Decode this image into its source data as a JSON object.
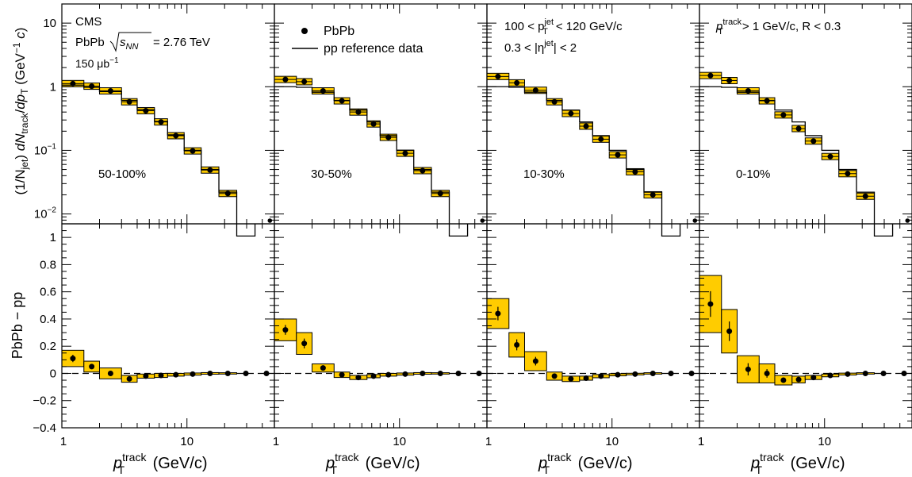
{
  "figure": {
    "experiment": "CMS",
    "system_prefix": "PbPb",
    "energy_sym": "s",
    "energy_sub": "NN",
    "energy_value": "= 2.76 TeV",
    "luminosity": "150 μb",
    "luminosity_exp": "−1",
    "legend_pbpb": "PbPb",
    "legend_pp": "pp reference data",
    "jet_cut_left": "100 < p",
    "jet_cut_sup": "jet",
    "jet_cut_sub": "T",
    "jet_cut_right": "< 120 GeV/c",
    "eta_left": "0.3 < |η",
    "eta_sup": "jet",
    "eta_right": "| < 2",
    "track_cut_p": "p",
    "track_cut_sup": "track",
    "track_cut_sub": "T",
    "track_cut_right": "> 1 GeV/c, R < 0.3",
    "top_ylabel": "(1/Njet) dNtrack/dpT (GeV/c)^-1",
    "bottom_ylabel": "PbPb − pp",
    "xlabel_p": "p",
    "xlabel_sup": "track",
    "xlabel_sub": "T",
    "xlabel_unit": "(GeV/c)"
  },
  "chart_data": {
    "type": "scatter",
    "x_scale": "log",
    "top_y_scale": "log",
    "xlim": [
      1,
      50
    ],
    "top_ylim": [
      0.007,
      20
    ],
    "bottom_ylim": [
      -0.4,
      1.1
    ],
    "x_tick_labels": [
      "1",
      "10"
    ],
    "top_y_tick_labels": [
      "10^-2",
      "10^-1",
      "1",
      "10"
    ],
    "bottom_y_tick_labels": [
      "−0.4",
      "−0.2",
      "0",
      "0.2",
      "0.4",
      "0.6",
      "0.8",
      "1"
    ],
    "bin_edges": [
      1,
      1.5,
      2,
      3,
      4,
      5.5,
      7,
      9.5,
      13,
      18,
      25,
      35,
      50
    ],
    "panels": [
      {
        "centrality": "50-100%",
        "pbpb": [
          1.12,
          1.02,
          0.86,
          0.58,
          0.42,
          0.28,
          0.17,
          0.098,
          0.049,
          0.021,
          0.004,
          0.0075
        ],
        "pp": [
          1.06,
          0.98,
          0.84,
          0.61,
          0.44,
          0.285,
          0.175,
          0.1,
          0.05,
          0.022,
          0.0045,
          0.0075
        ],
        "diff": [
          0.11,
          0.05,
          0.0,
          -0.04,
          -0.02,
          -0.015,
          -0.01,
          -0.005,
          0.0,
          0.0,
          0.0,
          0.0
        ],
        "diff_sys": [
          0.06,
          0.04,
          0.04,
          0.025,
          0.015,
          0.015,
          0.01,
          0.008,
          0.006,
          0.005,
          0.004,
          0.003
        ]
      },
      {
        "centrality": "30-50%",
        "pbpb": [
          1.3,
          1.2,
          0.86,
          0.6,
          0.4,
          0.26,
          0.16,
          0.09,
          0.048,
          0.021,
          0.004,
          0.0075
        ],
        "pp": [
          1.0,
          0.98,
          0.82,
          0.61,
          0.43,
          0.28,
          0.17,
          0.1,
          0.05,
          0.022,
          0.0045,
          0.0075
        ],
        "diff": [
          0.32,
          0.22,
          0.04,
          -0.01,
          -0.03,
          -0.02,
          -0.01,
          -0.005,
          0.0,
          0.0,
          0.0,
          0.0
        ],
        "diff_sys": [
          0.08,
          0.08,
          0.03,
          0.02,
          0.015,
          0.012,
          0.01,
          0.008,
          0.006,
          0.005,
          0.004,
          0.003
        ]
      },
      {
        "centrality": "10-30%",
        "pbpb": [
          1.45,
          1.15,
          0.88,
          0.58,
          0.38,
          0.24,
          0.15,
          0.085,
          0.046,
          0.02,
          0.004,
          0.0075
        ],
        "pp": [
          1.0,
          0.98,
          0.82,
          0.61,
          0.43,
          0.28,
          0.17,
          0.1,
          0.05,
          0.022,
          0.0045,
          0.0075
        ],
        "diff": [
          0.44,
          0.21,
          0.09,
          -0.02,
          -0.04,
          -0.035,
          -0.02,
          -0.01,
          -0.005,
          0.0,
          0.0,
          0.0
        ],
        "diff_sys": [
          0.11,
          0.09,
          0.07,
          0.03,
          0.02,
          0.015,
          0.012,
          0.008,
          0.006,
          0.005,
          0.004,
          0.003
        ]
      },
      {
        "centrality": "0-10%",
        "pbpb": [
          1.5,
          1.25,
          0.86,
          0.6,
          0.36,
          0.22,
          0.14,
          0.08,
          0.043,
          0.019,
          0.004,
          0.0075
        ],
        "pp": [
          1.0,
          0.98,
          0.82,
          0.61,
          0.43,
          0.28,
          0.17,
          0.1,
          0.05,
          0.022,
          0.0045,
          0.0075
        ],
        "diff": [
          0.51,
          0.31,
          0.03,
          0.0,
          -0.05,
          -0.045,
          -0.03,
          -0.015,
          -0.005,
          0.0,
          0.0,
          0.0
        ],
        "diff_sys": [
          0.21,
          0.16,
          0.1,
          0.07,
          0.035,
          0.025,
          0.015,
          0.01,
          0.007,
          0.005,
          0.004,
          0.003
        ]
      }
    ]
  },
  "colors": {
    "band_fill": "#FFCC00",
    "marker": "#000000",
    "pp_line": "#000000"
  }
}
